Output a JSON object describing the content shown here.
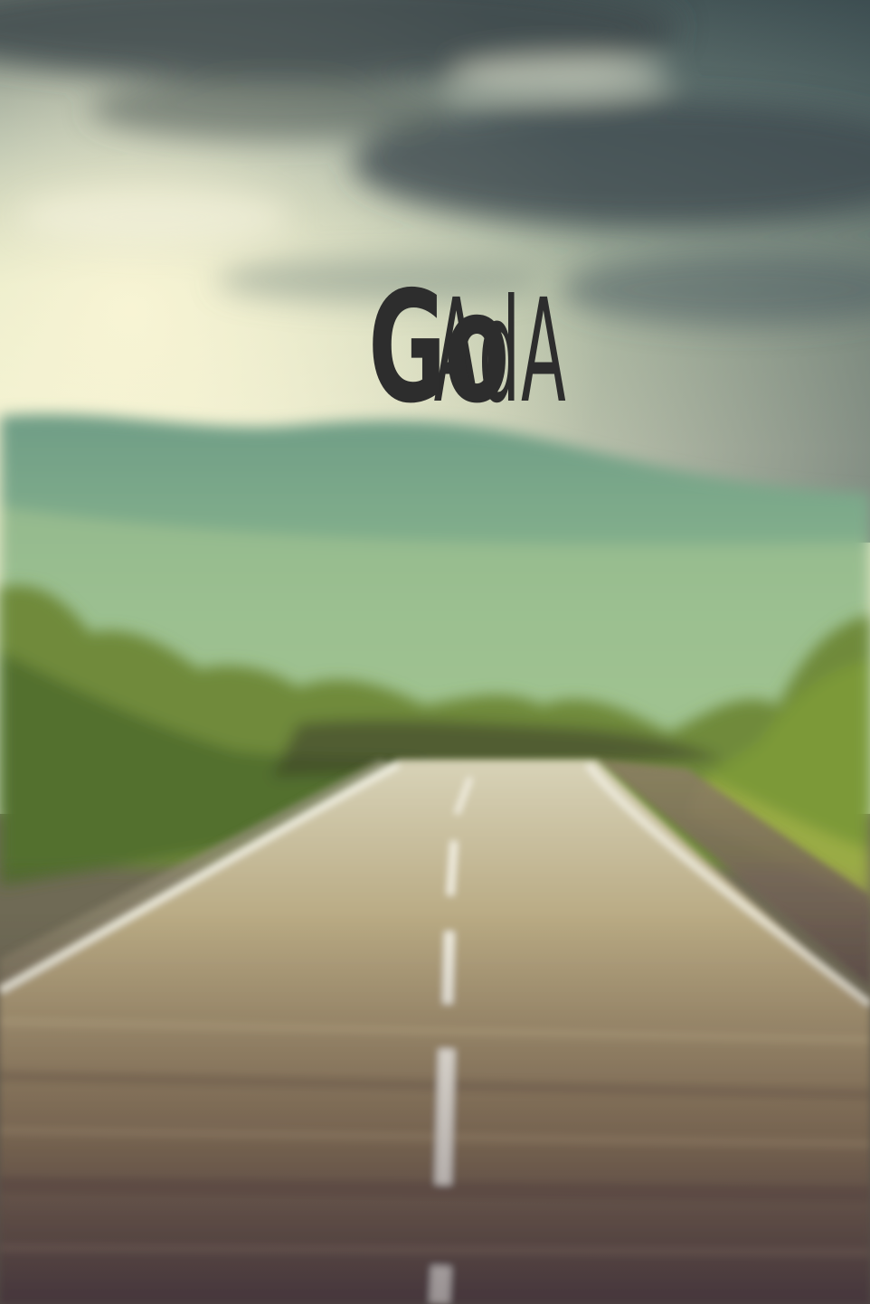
{
  "splash": {
    "brand_light": "AdA",
    "brand_bold": "Go",
    "background": "blurred-road-landscape-photo",
    "colors": {
      "logo": "#2d2d2d",
      "sky": "#b8c7b8",
      "hills": "#7fa889",
      "trees": "#6f8a3a",
      "road": "#8a7a5a",
      "lane": "#f1efe2"
    }
  }
}
